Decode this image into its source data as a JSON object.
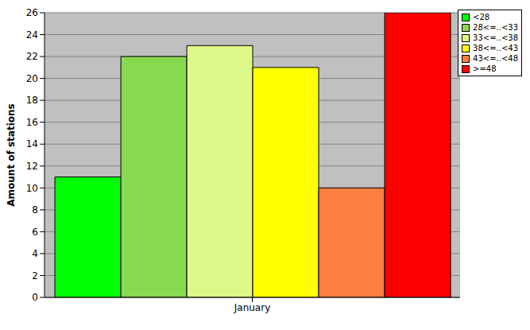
{
  "chart_data": {
    "type": "bar",
    "ylabel": "Amount of stations",
    "categories": [
      "January"
    ],
    "series": [
      {
        "name": "<28",
        "color": "#00ff00",
        "values": [
          11
        ]
      },
      {
        "name": "28<=..<33",
        "color": "#88d850",
        "values": [
          22
        ]
      },
      {
        "name": "33<=..<38",
        "color": "#ddf888",
        "values": [
          23
        ]
      },
      {
        "name": "38<=..<43",
        "color": "#ffff00",
        "values": [
          21
        ]
      },
      {
        "name": "43<=..<48",
        "color": "#ff7f40",
        "values": [
          10
        ]
      },
      {
        "name": ">=48",
        "color": "#ff0000",
        "values": [
          26
        ]
      }
    ],
    "ylim": [
      0,
      26
    ],
    "yticks": [
      0,
      2,
      4,
      6,
      8,
      10,
      12,
      14,
      16,
      18,
      20,
      22,
      24,
      26
    ],
    "grid": true,
    "legend": "upper right"
  }
}
